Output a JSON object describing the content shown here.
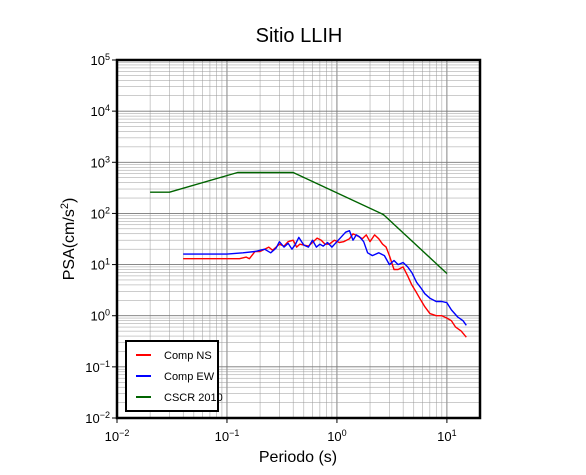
{
  "chart_data": {
    "type": "line",
    "title": "Sitio LLIH",
    "xlabel": "Periodo (s)",
    "ylabel": "PSA(cm/s",
    "ylabel_sup": "2",
    "ylabel_end": ")",
    "xscale": "log",
    "yscale": "log",
    "xlim": [
      0.01,
      20
    ],
    "ylim": [
      0.01,
      100000
    ],
    "grid": true,
    "legend_position": "bottom-left",
    "x_ticks": [
      {
        "base": "10",
        "exp": "−2",
        "value": 0.01
      },
      {
        "base": "10",
        "exp": "−1",
        "value": 0.1
      },
      {
        "base": "10",
        "exp": "0",
        "value": 1
      },
      {
        "base": "10",
        "exp": "1",
        "value": 10
      }
    ],
    "y_ticks": [
      {
        "base": "10",
        "exp": "−2",
        "value": 0.01
      },
      {
        "base": "10",
        "exp": "−1",
        "value": 0.1
      },
      {
        "base": "10",
        "exp": "0",
        "value": 1
      },
      {
        "base": "10",
        "exp": "1",
        "value": 10
      },
      {
        "base": "10",
        "exp": "2",
        "value": 100
      },
      {
        "base": "10",
        "exp": "3",
        "value": 1000
      },
      {
        "base": "10",
        "exp": "4",
        "value": 10000
      },
      {
        "base": "10",
        "exp": "5",
        "value": 100000
      }
    ],
    "series": [
      {
        "name": "Comp NS",
        "color": "#ff0000",
        "points": [
          [
            0.04,
            13
          ],
          [
            0.06,
            13
          ],
          [
            0.1,
            13
          ],
          [
            0.13,
            13
          ],
          [
            0.15,
            14
          ],
          [
            0.16,
            13
          ],
          [
            0.18,
            18
          ],
          [
            0.2,
            18
          ],
          [
            0.22,
            20
          ],
          [
            0.24,
            22
          ],
          [
            0.26,
            19
          ],
          [
            0.28,
            22
          ],
          [
            0.3,
            25
          ],
          [
            0.33,
            23
          ],
          [
            0.36,
            28
          ],
          [
            0.4,
            30
          ],
          [
            0.43,
            22
          ],
          [
            0.46,
            25
          ],
          [
            0.5,
            24
          ],
          [
            0.55,
            23
          ],
          [
            0.6,
            27
          ],
          [
            0.66,
            33
          ],
          [
            0.72,
            30
          ],
          [
            0.78,
            25
          ],
          [
            0.85,
            25
          ],
          [
            0.95,
            30
          ],
          [
            1.05,
            27
          ],
          [
            1.15,
            28
          ],
          [
            1.3,
            32
          ],
          [
            1.4,
            40
          ],
          [
            1.55,
            36
          ],
          [
            1.7,
            32
          ],
          [
            1.85,
            38
          ],
          [
            2.0,
            28
          ],
          [
            2.2,
            38
          ],
          [
            2.4,
            32
          ],
          [
            2.6,
            25
          ],
          [
            2.8,
            22
          ],
          [
            3.0,
            15
          ],
          [
            3.3,
            8
          ],
          [
            3.6,
            8
          ],
          [
            4.0,
            9
          ],
          [
            4.4,
            6
          ],
          [
            4.8,
            4
          ],
          [
            5.3,
            2.8
          ],
          [
            5.8,
            2.0
          ],
          [
            6.3,
            1.5
          ],
          [
            7.0,
            1.1
          ],
          [
            8.0,
            1.0
          ],
          [
            9.0,
            1.0
          ],
          [
            10.0,
            0.9
          ],
          [
            11.0,
            0.8
          ],
          [
            12.0,
            0.6
          ],
          [
            13.5,
            0.5
          ],
          [
            15.0,
            0.38
          ]
        ]
      },
      {
        "name": "Comp EW",
        "color": "#0000ff",
        "points": [
          [
            0.04,
            16
          ],
          [
            0.06,
            16
          ],
          [
            0.1,
            16
          ],
          [
            0.14,
            17
          ],
          [
            0.18,
            18
          ],
          [
            0.22,
            20
          ],
          [
            0.25,
            17
          ],
          [
            0.28,
            21
          ],
          [
            0.3,
            28
          ],
          [
            0.33,
            22
          ],
          [
            0.36,
            26
          ],
          [
            0.39,
            20
          ],
          [
            0.42,
            25
          ],
          [
            0.45,
            34
          ],
          [
            0.5,
            24
          ],
          [
            0.55,
            22
          ],
          [
            0.6,
            30
          ],
          [
            0.65,
            22
          ],
          [
            0.7,
            25
          ],
          [
            0.75,
            23
          ],
          [
            0.82,
            27
          ],
          [
            0.9,
            22
          ],
          [
            1.0,
            28
          ],
          [
            1.1,
            35
          ],
          [
            1.2,
            43
          ],
          [
            1.3,
            46
          ],
          [
            1.4,
            30
          ],
          [
            1.5,
            38
          ],
          [
            1.6,
            35
          ],
          [
            1.75,
            28
          ],
          [
            1.9,
            17
          ],
          [
            2.1,
            15
          ],
          [
            2.4,
            17
          ],
          [
            2.7,
            15
          ],
          [
            3.0,
            10
          ],
          [
            3.3,
            12
          ],
          [
            3.6,
            10
          ],
          [
            4.0,
            11
          ],
          [
            4.4,
            9
          ],
          [
            4.8,
            7
          ],
          [
            5.3,
            4.5
          ],
          [
            5.8,
            3.5
          ],
          [
            6.3,
            2.7
          ],
          [
            7.0,
            2.2
          ],
          [
            8.0,
            1.9
          ],
          [
            9.0,
            1.9
          ],
          [
            10.0,
            1.8
          ],
          [
            11.0,
            1.3
          ],
          [
            12.5,
            0.95
          ],
          [
            14.0,
            0.8
          ],
          [
            15.0,
            0.65
          ]
        ]
      },
      {
        "name": "CSCR 2010",
        "color": "#006400",
        "points": [
          [
            0.02,
            260
          ],
          [
            0.03,
            260
          ],
          [
            0.125,
            630
          ],
          [
            0.4,
            630
          ],
          [
            2.65,
            95
          ],
          [
            10.0,
            6.7
          ]
        ]
      }
    ]
  }
}
